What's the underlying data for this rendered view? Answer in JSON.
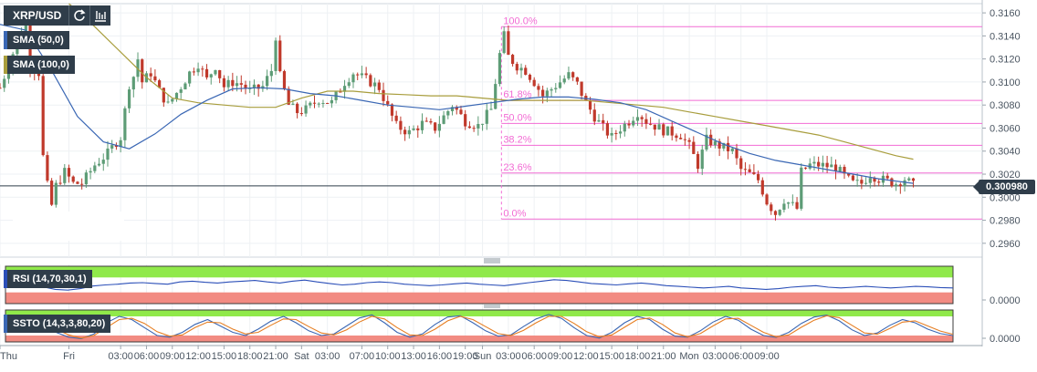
{
  "header": {
    "symbol": "XRP/USD"
  },
  "price_badge": "0.300980",
  "indicators": {
    "sma50": "SMA (50,0)",
    "sma100": "SMA (100,0)",
    "rsi": "RSI (14,70,30,1)",
    "ssto": "SSTO (14,3,3,80,20)"
  },
  "colors": {
    "up": "#5d9c76",
    "down": "#c0392b",
    "sma50": "#3a67b4",
    "sma100": "#a89d3c",
    "fib": "#f26bd4",
    "rsi": "#2b4fb8",
    "ssto_k": "#3a67b4",
    "ssto_d": "#e67e22",
    "zone_green": "#90e94a",
    "zone_red": "#f28b82"
  },
  "icons": {
    "refresh": "refresh-icon",
    "chart": "candles-icon"
  },
  "chart_data": [
    {
      "type": "candlestick",
      "ylim": [
        0.2948,
        0.3168
      ],
      "y_ticks": [
        "0.3160",
        "0.3140",
        "0.3120",
        "0.3100",
        "0.3080",
        "0.3060",
        "0.3040",
        "0.3020",
        "0.3000",
        "0.2980",
        "0.2960"
      ],
      "x_ticks": [
        "Thu",
        "Fri",
        "03:00",
        "06:00",
        "09:00",
        "12:00",
        "15:00",
        "18:00",
        "21:00",
        "Sat",
        "03:00",
        "07:00",
        "10:00",
        "13:00",
        "16:00",
        "19:00",
        "Sun",
        "03:00",
        "06:00",
        "09:00",
        "12:00",
        "15:00",
        "18:00",
        "21:00",
        "Mon",
        "03:00",
        "06:00",
        "09:00"
      ],
      "x_range_hours": [
        -3,
        111
      ],
      "current_price": 0.30098,
      "fibonacci": [
        {
          "label": "100.0%",
          "price": 0.3148
        },
        {
          "label": "61.8%",
          "price": 0.3084
        },
        {
          "label": "50.0%",
          "price": 0.3064
        },
        {
          "label": "38.2%",
          "price": 0.3045
        },
        {
          "label": "23.6%",
          "price": 0.3021
        },
        {
          "label": "0.0%",
          "price": 0.2981
        }
      ],
      "close_path": [
        [
          -3,
          0.3095
        ],
        [
          -1.5,
          0.3125
        ],
        [
          0,
          0.3155
        ],
        [
          0.5,
          0.3115
        ],
        [
          1.5,
          0.3108
        ],
        [
          2,
          0.3035
        ],
        [
          2.5,
          0.301
        ],
        [
          3,
          0.2993
        ],
        [
          3.5,
          0.301
        ],
        [
          4.5,
          0.3022
        ],
        [
          5.5,
          0.3012
        ],
        [
          6.5,
          0.3012
        ],
        [
          8,
          0.3028
        ],
        [
          9.5,
          0.3038
        ],
        [
          10.5,
          0.3048
        ],
        [
          11,
          0.3052
        ],
        [
          12,
          0.3098
        ],
        [
          12.5,
          0.3105
        ],
        [
          13,
          0.312
        ],
        [
          13.5,
          0.31
        ],
        [
          14.5,
          0.3108
        ],
        [
          15.5,
          0.3092
        ],
        [
          16.5,
          0.308
        ],
        [
          18,
          0.3096
        ],
        [
          19,
          0.3108
        ],
        [
          20,
          0.3116
        ],
        [
          21,
          0.3102
        ],
        [
          22,
          0.3114
        ],
        [
          23,
          0.3096
        ],
        [
          24,
          0.31
        ],
        [
          25,
          0.3098
        ],
        [
          26,
          0.3092
        ],
        [
          27.5,
          0.3096
        ],
        [
          28.5,
          0.311
        ],
        [
          29,
          0.314
        ],
        [
          29.5,
          0.3105
        ],
        [
          30.5,
          0.308
        ],
        [
          31.5,
          0.3074
        ],
        [
          32.5,
          0.3076
        ],
        [
          34,
          0.3085
        ],
        [
          35.5,
          0.3082
        ],
        [
          37,
          0.31
        ],
        [
          38,
          0.3108
        ],
        [
          40,
          0.31
        ],
        [
          41,
          0.3095
        ],
        [
          42,
          0.3078
        ],
        [
          43,
          0.3062
        ],
        [
          44.5,
          0.3056
        ],
        [
          46,
          0.3064
        ],
        [
          47.5,
          0.306
        ],
        [
          48.5,
          0.307
        ],
        [
          49.5,
          0.308
        ],
        [
          51,
          0.3066
        ],
        [
          52.5,
          0.3062
        ],
        [
          54,
          0.3076
        ],
        [
          55,
          0.3124
        ],
        [
          55.5,
          0.314
        ],
        [
          56,
          0.3122
        ],
        [
          57,
          0.3114
        ],
        [
          58,
          0.311
        ],
        [
          59,
          0.31
        ],
        [
          60,
          0.3088
        ],
        [
          61,
          0.3094
        ],
        [
          62,
          0.31
        ],
        [
          63,
          0.3106
        ],
        [
          64,
          0.3098
        ],
        [
          65,
          0.3082
        ],
        [
          66,
          0.307
        ],
        [
          67,
          0.306
        ],
        [
          68,
          0.3052
        ],
        [
          69,
          0.306
        ],
        [
          70,
          0.3066
        ],
        [
          71,
          0.3074
        ],
        [
          72,
          0.3066
        ],
        [
          74,
          0.3058
        ],
        [
          76,
          0.3054
        ],
        [
          77,
          0.3044
        ],
        [
          78,
          0.3028
        ],
        [
          79,
          0.305
        ],
        [
          80,
          0.3046
        ],
        [
          82,
          0.304
        ],
        [
          83,
          0.3024
        ],
        [
          84,
          0.302
        ],
        [
          85,
          0.3015
        ],
        [
          86,
          0.2996
        ],
        [
          87,
          0.2986
        ],
        [
          88,
          0.2998
        ],
        [
          89.5,
          0.299
        ],
        [
          90,
          0.3022
        ],
        [
          91,
          0.3028
        ],
        [
          92,
          0.3028
        ],
        [
          94,
          0.3026
        ],
        [
          95,
          0.3018
        ],
        [
          96,
          0.3012
        ],
        [
          97,
          0.3012
        ],
        [
          98,
          0.302
        ],
        [
          99,
          0.3016
        ],
        [
          100,
          0.3014
        ],
        [
          101,
          0.3012
        ],
        [
          102,
          0.3016
        ],
        [
          103,
          0.301
        ]
      ],
      "sma50_path": [
        [
          -3,
          0.315
        ],
        [
          0,
          0.3145
        ],
        [
          3,
          0.311
        ],
        [
          6,
          0.307
        ],
        [
          9,
          0.3048
        ],
        [
          12,
          0.3042
        ],
        [
          15,
          0.3055
        ],
        [
          18,
          0.3072
        ],
        [
          21,
          0.3084
        ],
        [
          24,
          0.3094
        ],
        [
          27,
          0.3095
        ],
        [
          30,
          0.3094
        ],
        [
          33,
          0.309
        ],
        [
          36,
          0.3088
        ],
        [
          39,
          0.3084
        ],
        [
          42,
          0.308
        ],
        [
          45,
          0.3078
        ],
        [
          48,
          0.3076
        ],
        [
          51,
          0.3079
        ],
        [
          54,
          0.3082
        ],
        [
          57,
          0.3085
        ],
        [
          60,
          0.3087
        ],
        [
          63,
          0.3087
        ],
        [
          66,
          0.3085
        ],
        [
          69,
          0.3082
        ],
        [
          72,
          0.3076
        ],
        [
          75,
          0.3066
        ],
        [
          78,
          0.3056
        ],
        [
          81,
          0.3046
        ],
        [
          84,
          0.3038
        ],
        [
          87,
          0.3032
        ],
        [
          90,
          0.3028
        ],
        [
          93,
          0.3024
        ],
        [
          96,
          0.302
        ],
        [
          99,
          0.3016
        ],
        [
          102,
          0.3013
        ],
        [
          103,
          0.3012
        ]
      ],
      "sma100_path": [
        [
          5,
          0.317
        ],
        [
          8,
          0.3148
        ],
        [
          11,
          0.3126
        ],
        [
          14,
          0.3104
        ],
        [
          17,
          0.3086
        ],
        [
          20,
          0.3082
        ],
        [
          23,
          0.308
        ],
        [
          26,
          0.3078
        ],
        [
          29,
          0.3078
        ],
        [
          32,
          0.3086
        ],
        [
          35,
          0.3092
        ],
        [
          38,
          0.3092
        ],
        [
          41,
          0.309
        ],
        [
          44,
          0.3089
        ],
        [
          47,
          0.3088
        ],
        [
          50,
          0.3088
        ],
        [
          53,
          0.3086
        ],
        [
          56,
          0.3084
        ],
        [
          59,
          0.3084
        ],
        [
          62,
          0.3084
        ],
        [
          65,
          0.3084
        ],
        [
          68,
          0.3082
        ],
        [
          71,
          0.308
        ],
        [
          74,
          0.3078
        ],
        [
          77,
          0.3074
        ],
        [
          80,
          0.307
        ],
        [
          83,
          0.3066
        ],
        [
          86,
          0.3062
        ],
        [
          89,
          0.3058
        ],
        [
          92,
          0.3054
        ],
        [
          95,
          0.3048
        ],
        [
          98,
          0.3042
        ],
        [
          101,
          0.3036
        ],
        [
          103,
          0.3033
        ]
      ]
    },
    {
      "type": "line",
      "name": "RSI",
      "y_ticks": [
        "0.0000"
      ],
      "upper": 70,
      "lower": 30,
      "ylim": [
        0,
        100
      ],
      "values": [
        48,
        46,
        52,
        45,
        38,
        36,
        40,
        47,
        50,
        52,
        55,
        56,
        54,
        52,
        58,
        60,
        57,
        55,
        58,
        60,
        62,
        58,
        55,
        60,
        63,
        58,
        54,
        50,
        52,
        56,
        58,
        56,
        52,
        50,
        48,
        50,
        53,
        55,
        52,
        50,
        48,
        52,
        56,
        60,
        64,
        62,
        58,
        54,
        52,
        50,
        53,
        55,
        52,
        48,
        46,
        44,
        42,
        44,
        46,
        42,
        40,
        38,
        40,
        44,
        46,
        48,
        44,
        42,
        44,
        46,
        44,
        42,
        44,
        46,
        45,
        43,
        42
      ]
    },
    {
      "type": "line",
      "name": "SSTO",
      "y_ticks": [
        "0.0000"
      ],
      "upper": 80,
      "lower": 20,
      "ylim": [
        0,
        100
      ],
      "series": [
        {
          "values": [
            40,
            60,
            75,
            55,
            30,
            15,
            10,
            25,
            60,
            80,
            70,
            45,
            20,
            15,
            30,
            55,
            70,
            50,
            30,
            20,
            40,
            65,
            80,
            60,
            35,
            20,
            25,
            50,
            75,
            85,
            60,
            30,
            15,
            25,
            55,
            78,
            82,
            60,
            35,
            18,
            22,
            48,
            72,
            86,
            74,
            45,
            20,
            12,
            30,
            60,
            80,
            70,
            40,
            18,
            15,
            35,
            62,
            80,
            68,
            40,
            20,
            14,
            30,
            58,
            78,
            84,
            66,
            38,
            20,
            28,
            52,
            70,
            60,
            40,
            26,
            20
          ]
        },
        {
          "values": [
            45,
            55,
            68,
            62,
            40,
            22,
            12,
            20,
            45,
            70,
            74,
            58,
            32,
            18,
            22,
            45,
            62,
            60,
            40,
            25,
            30,
            52,
            72,
            70,
            48,
            28,
            22,
            38,
            62,
            80,
            72,
            45,
            22,
            20,
            40,
            66,
            80,
            70,
            48,
            26,
            20,
            36,
            60,
            80,
            80,
            58,
            32,
            16,
            22,
            46,
            70,
            75,
            55,
            28,
            16,
            26,
            50,
            72,
            74,
            52,
            30,
            16,
            22,
            46,
            68,
            82,
            76,
            52,
            28,
            24,
            42,
            62,
            66,
            50,
            34,
            24
          ]
        }
      ]
    }
  ]
}
